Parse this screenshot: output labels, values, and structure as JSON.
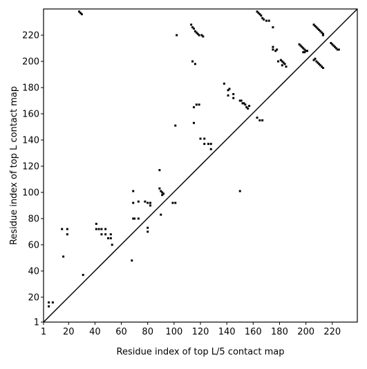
{
  "chart_data": {
    "type": "scatter",
    "xlabel": "Residue index of top L/5 contact map",
    "ylabel": "Residue index of top L contact map",
    "xlim": [
      1,
      239
    ],
    "ylim": [
      1,
      240
    ],
    "xticks": [
      1,
      20,
      40,
      60,
      80,
      100,
      120,
      140,
      160,
      180,
      200,
      220
    ],
    "yticks": [
      1,
      20,
      40,
      60,
      80,
      100,
      120,
      140,
      160,
      180,
      200,
      220
    ],
    "color": "#000000",
    "x": [
      5,
      8,
      5,
      15,
      19,
      19,
      16,
      31,
      41,
      41,
      43,
      45,
      45,
      48,
      48,
      50,
      52,
      52,
      53,
      68,
      69,
      69,
      69,
      70,
      73,
      73,
      78,
      80,
      80,
      80,
      82,
      82,
      89,
      89,
      90,
      91,
      92,
      91,
      90,
      99,
      101,
      101,
      102,
      28,
      29,
      30,
      113,
      114,
      115,
      116,
      117,
      118,
      119,
      121,
      122,
      114,
      116,
      115,
      117,
      119,
      115,
      120,
      123,
      123,
      126,
      128,
      128,
      138,
      141,
      142,
      141,
      145,
      145,
      150,
      151,
      152,
      153,
      154,
      155,
      156,
      157,
      150,
      163,
      164,
      165,
      166,
      167,
      168,
      170,
      172,
      175,
      175,
      175,
      177,
      178,
      163,
      165,
      167,
      179,
      181,
      182,
      182,
      183,
      184,
      185,
      195,
      196,
      197,
      198,
      199,
      200,
      201,
      198,
      199,
      206,
      207,
      208,
      209,
      210,
      211,
      212,
      213,
      213,
      206,
      207,
      208,
      209,
      210,
      211,
      212,
      213,
      219,
      220,
      221,
      222,
      223,
      224,
      225
    ],
    "y": [
      16,
      16,
      13,
      72,
      72,
      68,
      51,
      37,
      76,
      72,
      72,
      72,
      68,
      72,
      68,
      65,
      68,
      65,
      60,
      48,
      101,
      92,
      80,
      80,
      93,
      80,
      93,
      92,
      73,
      70,
      92,
      90,
      117,
      103,
      101,
      100,
      99,
      98,
      83,
      92,
      92,
      151,
      220,
      238,
      237,
      236,
      228,
      226,
      225,
      223,
      222,
      221,
      220,
      220,
      219,
      200,
      198,
      165,
      167,
      167,
      153,
      141,
      141,
      137,
      137,
      137,
      133,
      183,
      178,
      179,
      174,
      175,
      172,
      170,
      170,
      168,
      168,
      167,
      165,
      164,
      166,
      101,
      238,
      237,
      236,
      235,
      233,
      232,
      231,
      231,
      226,
      211,
      209,
      208,
      209,
      157,
      155,
      155,
      200,
      201,
      200,
      197,
      199,
      198,
      196,
      213,
      212,
      211,
      210,
      209,
      208,
      208,
      207,
      207,
      228,
      227,
      226,
      225,
      224,
      223,
      222,
      221,
      220,
      201,
      202,
      200,
      199,
      198,
      197,
      196,
      195,
      214,
      213,
      212,
      211,
      210,
      209,
      209
    ]
  }
}
